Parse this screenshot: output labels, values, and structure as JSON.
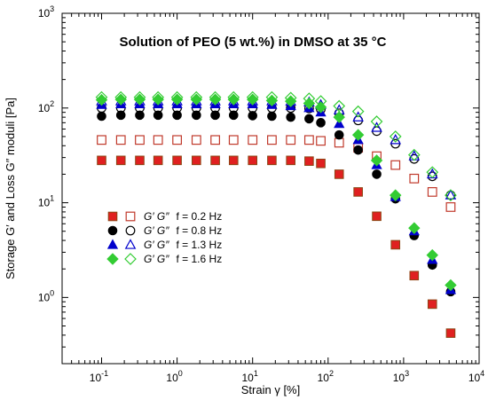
{
  "chart_data": {
    "type": "scatter",
    "title": "Solution of PEO (5 wt.%) in DMSO at 35 °C",
    "xlabel": "Strain γ [%]",
    "ylabel": "Storage G′ and Loss G″ moduli [Pa]",
    "xscale": "log",
    "yscale": "log",
    "xlim": [
      0.03,
      10000
    ],
    "ylim": [
      0.2,
      1000
    ],
    "x_ticks": [
      {
        "value": 0.1,
        "base": "10",
        "exp": "-1"
      },
      {
        "value": 1,
        "base": "10",
        "exp": "0"
      },
      {
        "value": 10,
        "base": "10",
        "exp": "1"
      },
      {
        "value": 100,
        "base": "10",
        "exp": "2"
      },
      {
        "value": 1000,
        "base": "10",
        "exp": "3"
      },
      {
        "value": 10000,
        "base": "10",
        "exp": "4"
      }
    ],
    "y_ticks": [
      {
        "value": 1,
        "base": "10",
        "exp": "0"
      },
      {
        "value": 10,
        "base": "10",
        "exp": "1"
      },
      {
        "value": 100,
        "base": "10",
        "exp": "2"
      },
      {
        "value": 1000,
        "base": "10",
        "exp": "3"
      }
    ],
    "grid": false,
    "legend_position": "center-left",
    "legend_entries": [
      {
        "storage_label": "G′",
        "loss_label": "G″",
        "freq_label": "f = 0.2 Hz"
      },
      {
        "storage_label": "G′",
        "loss_label": "G″",
        "freq_label": "f = 0.8 Hz"
      },
      {
        "storage_label": "G′",
        "loss_label": "G″",
        "freq_label": "f = 1.3 Hz"
      },
      {
        "storage_label": "G′",
        "loss_label": "G″",
        "freq_label": "f = 1.6 Hz"
      }
    ],
    "x": [
      0.1,
      0.18,
      0.32,
      0.56,
      1.0,
      1.8,
      3.2,
      5.6,
      10,
      18,
      32,
      56,
      80,
      140,
      250,
      440,
      780,
      1380,
      2400,
      4200
    ],
    "series": [
      {
        "group": "f = 0.2 Hz",
        "modulus": "G′",
        "marker": "square",
        "filled": true,
        "color": "#e02020",
        "edge": "#8b4513",
        "y": [
          28,
          28,
          28,
          28,
          28,
          28,
          28,
          28,
          28,
          28,
          28,
          27.5,
          26,
          20,
          13,
          7.2,
          3.6,
          1.7,
          0.85,
          0.42
        ]
      },
      {
        "group": "f = 0.2 Hz",
        "modulus": "G″",
        "marker": "square",
        "filled": false,
        "color": "#c0392b",
        "y": [
          46,
          46,
          46,
          46,
          46,
          46,
          46,
          46,
          46,
          46,
          46,
          46,
          45,
          43,
          38,
          31,
          25,
          18,
          13,
          9
        ]
      },
      {
        "group": "f = 0.8 Hz",
        "modulus": "G′",
        "marker": "circle",
        "filled": true,
        "color": "#000000",
        "y": [
          82,
          84,
          84,
          84,
          84,
          84,
          84,
          84,
          83,
          82,
          80,
          77,
          70,
          52,
          36,
          20,
          11,
          4.5,
          2.2,
          1.15
        ]
      },
      {
        "group": "f = 0.8 Hz",
        "modulus": "G″",
        "marker": "circle",
        "filled": false,
        "color": "#000000",
        "y": [
          100,
          100,
          100,
          100,
          100,
          100,
          100,
          100,
          100,
          100,
          100,
          99,
          97,
          88,
          74,
          57,
          42,
          29,
          19,
          12
        ]
      },
      {
        "group": "f = 1.3 Hz",
        "modulus": "G′",
        "marker": "triangle",
        "filled": true,
        "color": "#0000cc",
        "y": [
          108,
          110,
          110,
          110,
          110,
          110,
          110,
          110,
          110,
          108,
          105,
          100,
          90,
          68,
          46,
          25,
          11.5,
          5,
          2.5,
          1.2
        ]
      },
      {
        "group": "f = 1.3 Hz",
        "modulus": "G″",
        "marker": "triangle",
        "filled": false,
        "color": "#0000cc",
        "y": [
          118,
          118,
          118,
          118,
          118,
          118,
          118,
          118,
          118,
          118,
          117,
          115,
          108,
          95,
          80,
          62,
          46,
          31,
          20,
          12
        ]
      },
      {
        "group": "f = 1.6 Hz",
        "modulus": "G′",
        "marker": "diamond",
        "filled": true,
        "color": "#33cc33",
        "y": [
          122,
          123,
          123,
          123,
          123,
          123,
          123,
          123,
          123,
          120,
          118,
          112,
          102,
          80,
          52,
          28,
          12,
          5.4,
          2.8,
          1.35
        ]
      },
      {
        "group": "f = 1.6 Hz",
        "modulus": "G″",
        "marker": "diamond",
        "filled": false,
        "color": "#33cc33",
        "y": [
          130,
          130,
          130,
          130,
          130,
          130,
          130,
          130,
          130,
          130,
          128,
          126,
          118,
          105,
          92,
          72,
          50,
          32,
          21,
          12
        ]
      }
    ]
  }
}
